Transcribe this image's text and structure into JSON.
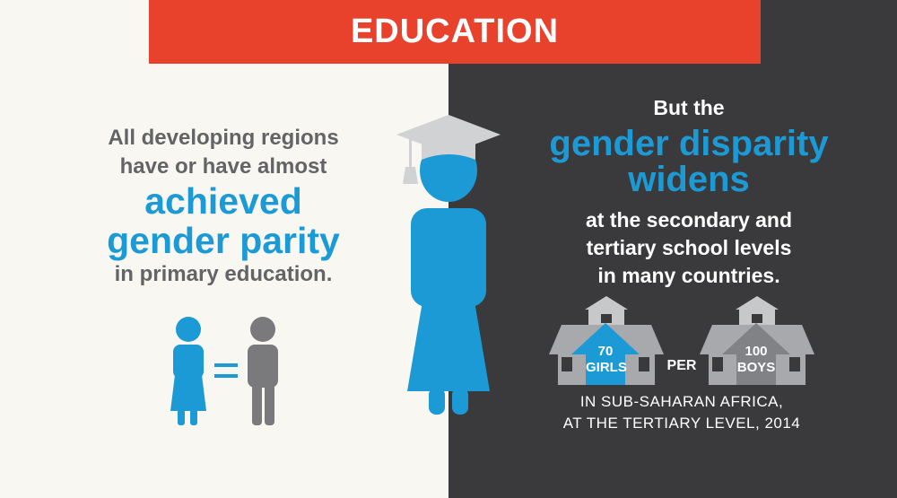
{
  "banner": {
    "title": "EDUCATION"
  },
  "left": {
    "line1": "All developing regions",
    "line2": "have or have almost",
    "highlight1": "achieved",
    "highlight2": "gender parity",
    "line3": "in primary education."
  },
  "right": {
    "line1": "But the",
    "highlight1": "gender disparity",
    "highlight2": "widens",
    "line2": "at the secondary and",
    "line3": "tertiary school levels",
    "line4": "in many countries."
  },
  "stat": {
    "girls_count": "70",
    "girls_label": "GIRLS",
    "per": "PER",
    "boys_count": "100",
    "boys_label": "BOYS"
  },
  "caption": {
    "line1": "IN SUB-SAHARAN AFRICA,",
    "line2": "AT THE TERTIARY LEVEL, 2014"
  },
  "colors": {
    "banner_red": "#e8412c",
    "accent_blue": "#1c9ad6",
    "text_gray": "#636466",
    "dark_bg": "#3a3a3c",
    "light_bg": "#f9f7f2"
  },
  "icons": [
    "girl-figure-icon",
    "equals-icon",
    "boy-figure-icon",
    "graduate-figure-icon",
    "school-house-icon"
  ]
}
